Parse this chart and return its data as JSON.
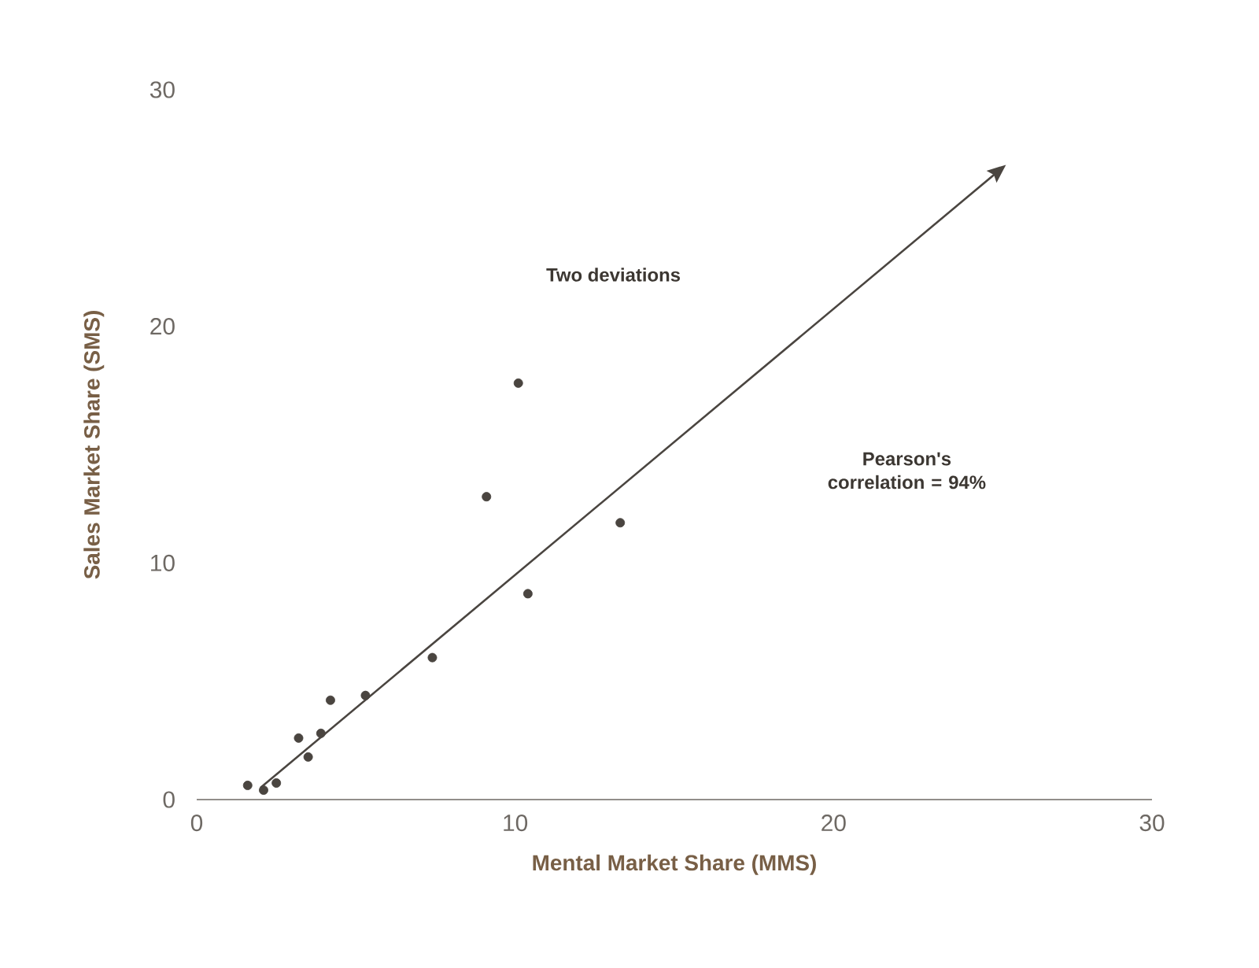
{
  "chart_data": {
    "type": "scatter",
    "xlabel": "Mental Market Share (MMS)",
    "ylabel": "Sales Market Share (SMS)",
    "annotations": [
      "Two deviations",
      "Pearson's\ncorrelation = 94%"
    ],
    "xlim": [
      0,
      30
    ],
    "ylim": [
      0,
      30
    ],
    "xticks": [
      0,
      10,
      20,
      30
    ],
    "yticks": [
      0,
      10,
      20,
      30
    ],
    "grid": false,
    "series": [
      {
        "type": "scatter",
        "marker": "circle",
        "color": "#4a4540",
        "x": [
          1.6,
          2.1,
          2.5,
          3.5,
          3.2,
          3.9,
          4.2,
          5.3,
          7.4,
          10.1,
          9.1,
          13.3,
          10.4
        ],
        "values": [
          0.6,
          0.4,
          0.7,
          1.8,
          2.6,
          2.8,
          4.2,
          4.4,
          6.0,
          17.6,
          12.8,
          11.7,
          8.7
        ]
      },
      {
        "type": "line",
        "color": "#4a4540",
        "line_style": "solid",
        "marker": "none",
        "x": [
          2,
          25.3
        ],
        "values": [
          0.5,
          26.7
        ]
      }
    ]
  }
}
